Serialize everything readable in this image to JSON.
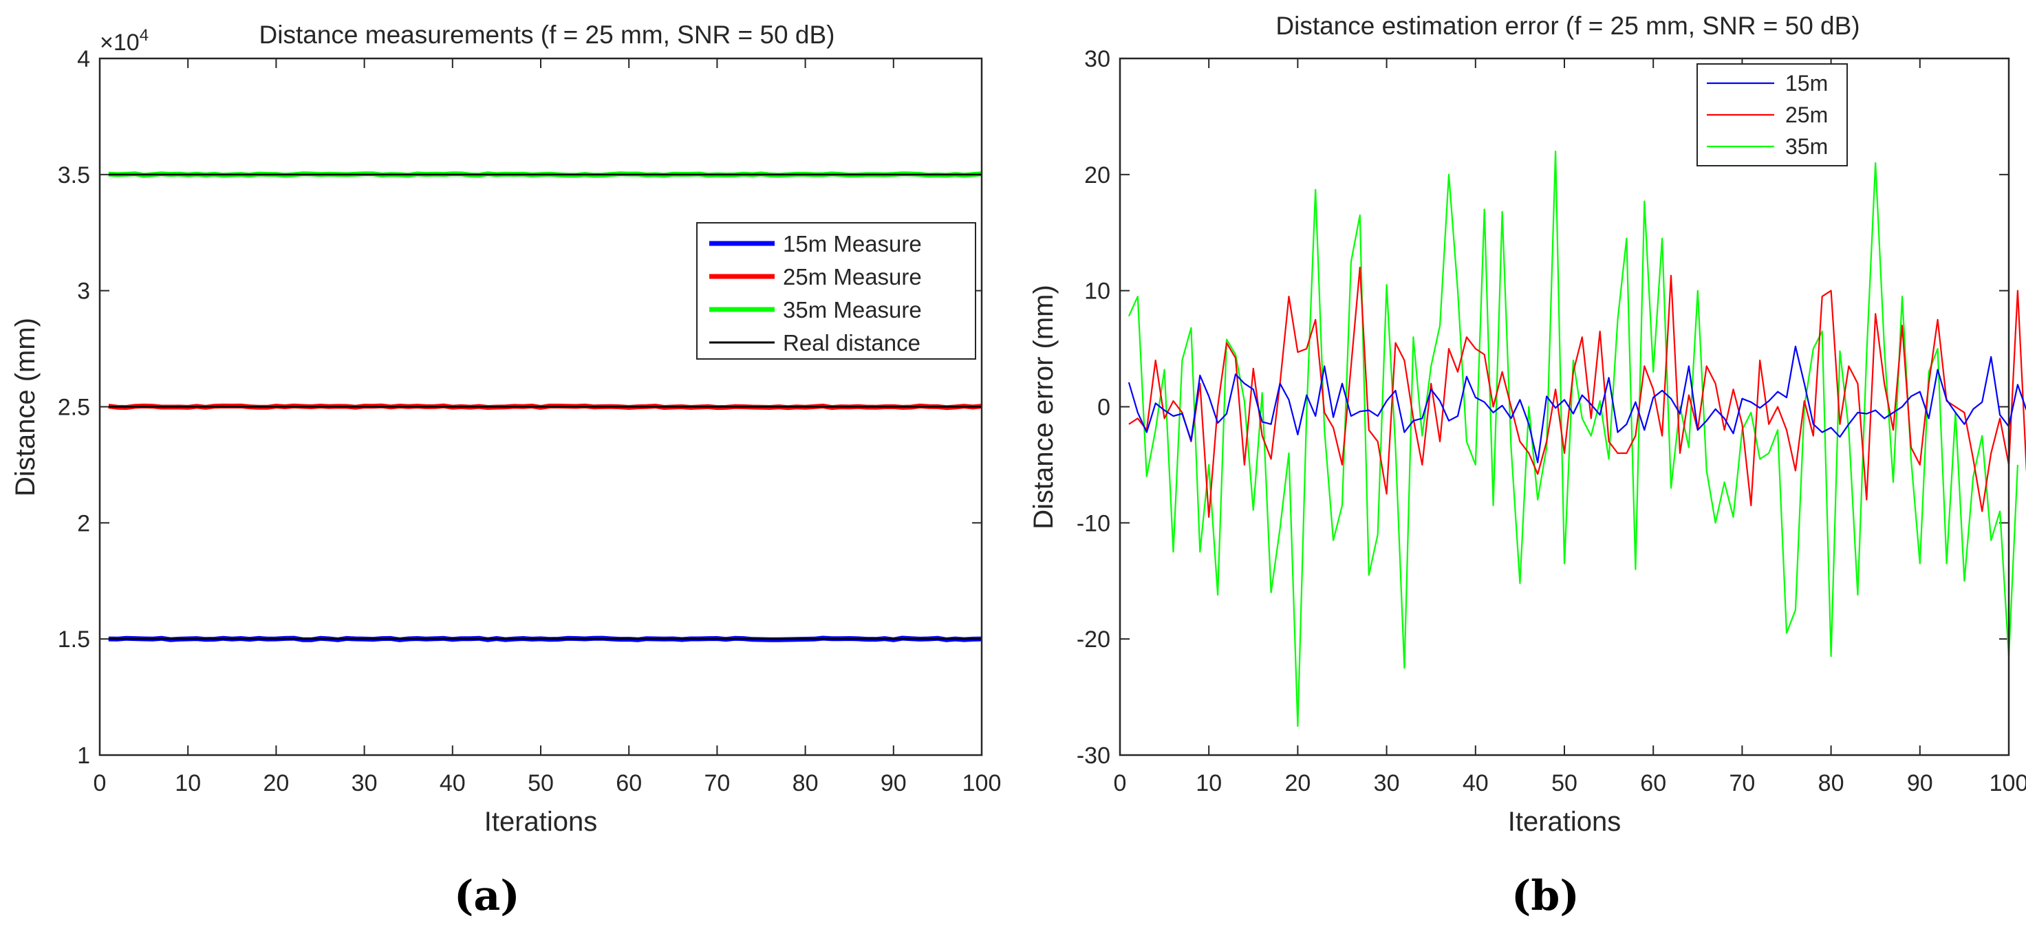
{
  "figure": {
    "labels": [
      "(a)",
      "(b)"
    ]
  },
  "chart_data": [
    {
      "type": "line",
      "title": "Distance measurements (f = 25 mm, SNR = 50 dB)",
      "xlabel": "Iterations",
      "ylabel": "Distance (mm)",
      "exponent_label": "×10",
      "exponent_power": "4",
      "xlim": [
        0,
        100
      ],
      "ylim": [
        1.0,
        4.0
      ],
      "xticks": [
        0,
        10,
        20,
        30,
        40,
        50,
        60,
        70,
        80,
        90,
        100
      ],
      "yticks": [
        1.0,
        1.5,
        2.0,
        2.5,
        3.0,
        3.5,
        4.0
      ],
      "ytick_labels": [
        "1",
        "1.5",
        "2",
        "2.5",
        "3",
        "3.5",
        "4"
      ],
      "legend": [
        "15m Measure",
        "25m Measure",
        "35m Measure",
        "Real distance"
      ],
      "legend_position": "right-middle",
      "series": [
        {
          "name": "15m Measure",
          "color": "#0000ff",
          "level": 1.5
        },
        {
          "name": "25m Measure",
          "color": "#ff0000",
          "level": 2.5
        },
        {
          "name": "35m Measure",
          "color": "#00ff00",
          "level": 3.5
        },
        {
          "name": "Real distance",
          "color": "#000000",
          "levels": [
            1.5,
            2.5,
            3.5
          ]
        }
      ]
    },
    {
      "type": "line",
      "title": "Distance estimation error (f = 25 mm, SNR = 50 dB)",
      "xlabel": "Iterations",
      "ylabel": "Distance error (mm)",
      "xlim": [
        0,
        100
      ],
      "ylim": [
        -30,
        30
      ],
      "xticks": [
        0,
        10,
        20,
        30,
        40,
        50,
        60,
        70,
        80,
        90,
        100
      ],
      "yticks": [
        -30,
        -20,
        -10,
        0,
        10,
        20,
        30
      ],
      "legend": [
        "15m",
        "25m",
        "35m"
      ],
      "legend_position": "top-center",
      "series": [
        {
          "name": "15m",
          "color": "#0000ff",
          "values": [
            2.1,
            -0.5,
            -2.2,
            0.3,
            -0.3,
            -0.8,
            -0.6,
            -2.9,
            2.7,
            0.9,
            -1.4,
            -0.6,
            2.8,
            2.0,
            1.5,
            -1.3,
            -1.5,
            2.0,
            0.6,
            -2.4,
            1.0,
            -0.8,
            3.5,
            -0.9,
            2.0,
            -0.8,
            -0.4,
            -0.3,
            -0.8,
            0.5,
            1.4,
            -2.2,
            -1.2,
            -1.0,
            1.5,
            0.5,
            -1.2,
            -0.8,
            2.6,
            0.8,
            0.4,
            -0.5,
            0.1,
            -1.0,
            0.6,
            -1.5,
            -4.8,
            0.9,
            -0.1,
            0.6,
            -0.6,
            1.0,
            0.2,
            -0.7,
            2.5,
            -2.2,
            -1.5,
            0.4,
            -2.0,
            0.8,
            1.4,
            0.7,
            -0.6,
            3.5,
            -2.0,
            -1.2,
            -0.2,
            -1.0,
            -2.3,
            0.7,
            0.4,
            -0.1,
            0.5,
            1.3,
            0.8,
            5.2,
            2.0,
            -1.5,
            -2.2,
            -1.8,
            -2.6,
            -1.5,
            -0.5,
            -0.6,
            -0.3,
            -1.0,
            -0.5,
            0.0,
            0.9,
            1.3,
            -1.0,
            3.2,
            0.6,
            -0.5,
            -1.5,
            -0.2,
            0.4,
            4.3,
            -0.7,
            -1.7,
            1.9,
            -0.3
          ]
        },
        {
          "name": "25m",
          "color": "#ff0000",
          "values": [
            -1.5,
            -1.0,
            -2.0,
            4.0,
            -1.0,
            0.5,
            -0.5,
            -3.0,
            2.0,
            -9.5,
            0.0,
            5.5,
            4.2,
            -5.0,
            3.3,
            -2.5,
            -4.5,
            2.0,
            9.5,
            4.7,
            5.0,
            7.5,
            -0.5,
            -1.8,
            -5.0,
            3.5,
            12.0,
            -2.0,
            -3.0,
            -7.5,
            5.5,
            4.0,
            -1.0,
            -5.0,
            2.0,
            -3.0,
            5.0,
            3.0,
            6.0,
            5.0,
            4.5,
            0.0,
            3.0,
            0.0,
            -3.0,
            -4.0,
            -5.8,
            -3.0,
            1.5,
            -4.0,
            3.0,
            6.0,
            -1.0,
            6.5,
            -3.0,
            -4.0,
            -4.0,
            -2.5,
            3.5,
            1.5,
            -2.5,
            11.3,
            -4.0,
            1.0,
            -2.0,
            3.5,
            2.0,
            -2.0,
            1.5,
            -1.5,
            -8.5,
            4.0,
            -1.5,
            0.0,
            -2.0,
            -5.5,
            0.5,
            -2.5,
            9.5,
            10.0,
            -1.5,
            3.5,
            2.0,
            -8.0,
            8.0,
            2.0,
            -2.0,
            7.0,
            -3.5,
            -5.0,
            2.0,
            7.5,
            0.5,
            0.0,
            -0.5,
            -4.5,
            -9.0,
            -4.0,
            -1.0,
            -5.0,
            10.0,
            -5.5
          ]
        },
        {
          "name": "35m",
          "color": "#00ff00",
          "values": [
            7.8,
            9.5,
            -6.0,
            -2.0,
            3.2,
            -12.5,
            4.0,
            6.8,
            -12.5,
            -5.0,
            -16.2,
            5.8,
            4.5,
            0.5,
            -8.9,
            1.2,
            -16.0,
            -10.5,
            -4.0,
            -27.5,
            -0.5,
            18.7,
            -2.0,
            -11.5,
            -8.5,
            12.5,
            16.5,
            -14.5,
            -11.0,
            10.5,
            -3.5,
            -22.5,
            6.0,
            -2.5,
            3.5,
            7.0,
            20.0,
            10.0,
            -3.0,
            -5.0,
            17.0,
            -8.5,
            16.8,
            -3.5,
            -15.2,
            0.0,
            -8.0,
            -3.5,
            22.0,
            -13.5,
            4.0,
            -1.0,
            -2.5,
            0.5,
            -4.5,
            7.5,
            14.5,
            -14.0,
            17.7,
            3.0,
            14.5,
            -7.0,
            0.0,
            -3.5,
            10.0,
            -5.5,
            -10.0,
            -6.5,
            -9.5,
            -2.0,
            -0.5,
            -4.5,
            -4.0,
            -2.0,
            -19.5,
            -17.5,
            0.0,
            5.0,
            6.5,
            -21.5,
            4.8,
            -2.0,
            -16.2,
            4.5,
            21.0,
            5.0,
            -6.5,
            9.5,
            -4.5,
            -13.5,
            3.0,
            5.0,
            -13.5,
            -0.5,
            -15.0,
            -6.0,
            -2.5,
            -11.5,
            -9.0,
            -21.5,
            -5.0
          ]
        }
      ]
    }
  ]
}
